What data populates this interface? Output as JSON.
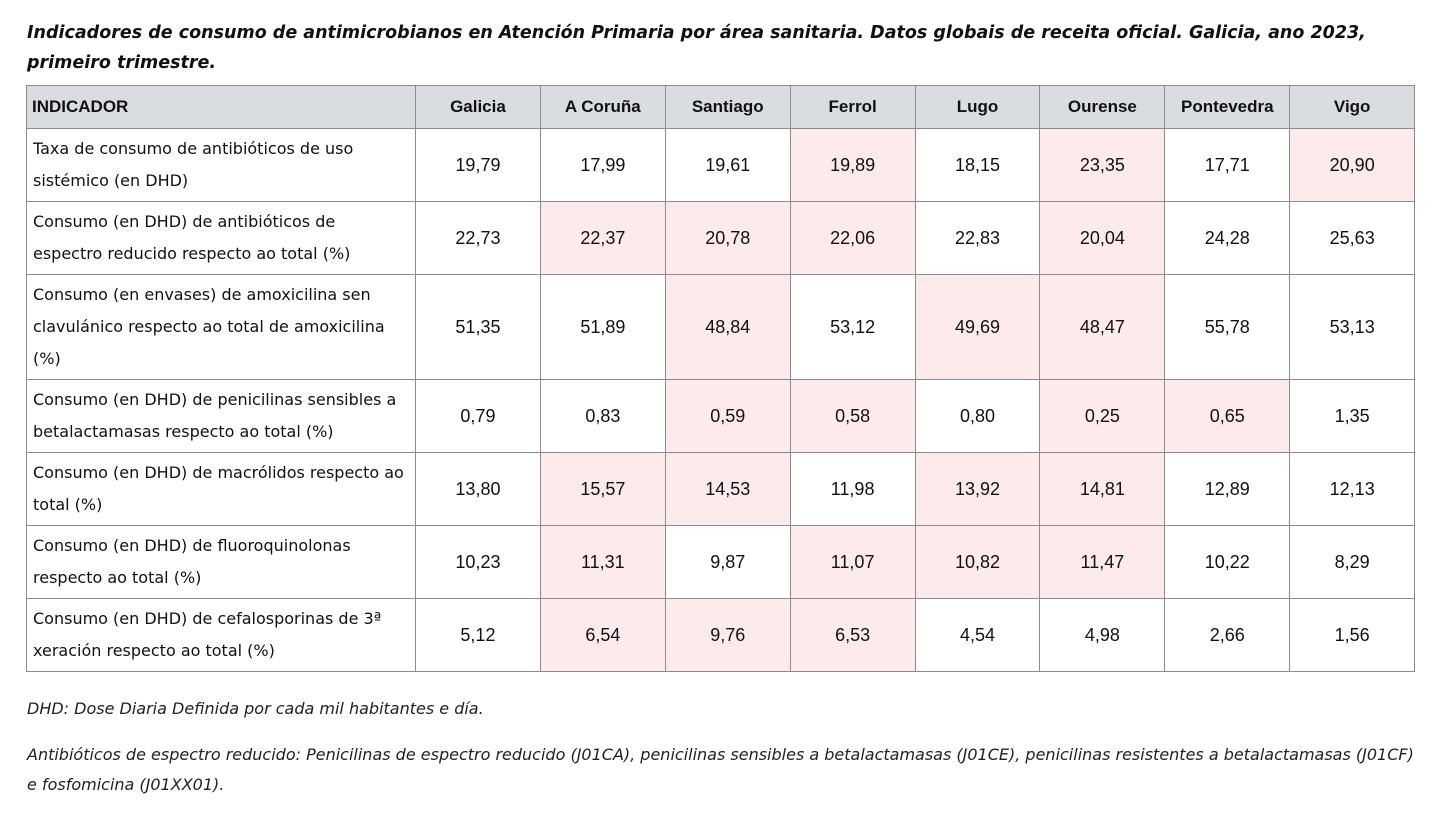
{
  "title": "Indicadores de consumo de antimicrobianos en Atención Primaria por área sanitaria. Datos globais de receita oficial. Galicia, ano 2023, primeiro trimestre.",
  "highlight_color": "#fdeaea",
  "header_color": "#d9dde1",
  "table": {
    "headers": [
      "INDICADOR",
      "Galicia",
      "A Coruña",
      "Santiago",
      "Ferrol",
      "Lugo",
      "Ourense",
      "Pontevedra",
      "Vigo"
    ],
    "rows": [
      {
        "label": "Taxa de consumo de antibióticos de uso sistémico (en DHD)",
        "values": [
          "19,79",
          "17,99",
          "19,61",
          "19,89",
          "18,15",
          "23,35",
          "17,71",
          "20,90"
        ],
        "highlighted": [
          false,
          false,
          false,
          true,
          false,
          true,
          false,
          true
        ]
      },
      {
        "label": "Consumo (en DHD) de antibióticos de espectro reducido respecto ao total (%)",
        "values": [
          "22,73",
          "22,37",
          "20,78",
          "22,06",
          "22,83",
          "20,04",
          "24,28",
          "25,63"
        ],
        "highlighted": [
          false,
          true,
          true,
          true,
          false,
          true,
          false,
          false
        ]
      },
      {
        "label": "Consumo (en envases) de amoxicilina sen clavulánico respecto ao total de amoxicilina (%)",
        "values": [
          "51,35",
          "51,89",
          "48,84",
          "53,12",
          "49,69",
          "48,47",
          "55,78",
          "53,13"
        ],
        "highlighted": [
          false,
          false,
          true,
          false,
          true,
          true,
          false,
          false
        ]
      },
      {
        "label": "Consumo (en DHD) de penicilinas sensibles a betalactamasas respecto ao total (%)",
        "values": [
          "0,79",
          "0,83",
          "0,59",
          "0,58",
          "0,80",
          "0,25",
          "0,65",
          "1,35"
        ],
        "highlighted": [
          false,
          false,
          true,
          true,
          false,
          true,
          true,
          false
        ]
      },
      {
        "label": "Consumo (en DHD) de macrólidos respecto ao total (%)",
        "values": [
          "13,80",
          "15,57",
          "14,53",
          "11,98",
          "13,92",
          "14,81",
          "12,89",
          "12,13"
        ],
        "highlighted": [
          false,
          true,
          true,
          false,
          true,
          true,
          false,
          false
        ]
      },
      {
        "label": "Consumo (en DHD) de fluoroquinolonas respecto ao total (%)",
        "values": [
          "10,23",
          "11,31",
          "9,87",
          "11,07",
          "10,82",
          "11,47",
          "10,22",
          "8,29"
        ],
        "highlighted": [
          false,
          true,
          false,
          true,
          true,
          true,
          false,
          false
        ]
      },
      {
        "label": "Consumo (en DHD) de cefalosporinas de 3ª xeración respecto ao total (%)",
        "values": [
          "5,12",
          "6,54",
          "9,76",
          "6,53",
          "4,54",
          "4,98",
          "2,66",
          "1,56"
        ],
        "highlighted": [
          false,
          true,
          true,
          true,
          false,
          false,
          false,
          false
        ]
      }
    ]
  },
  "notes": [
    "DHD: Dose Diaria Definida por cada mil habitantes e día.",
    "Antibióticos de espectro reducido: Penicilinas de espectro reducido (J01CA), penicilinas sensibles a betalactamasas (J01CE), penicilinas resistentes a betalactamasas (J01CF) e fosfomicina (J01XX01)."
  ]
}
